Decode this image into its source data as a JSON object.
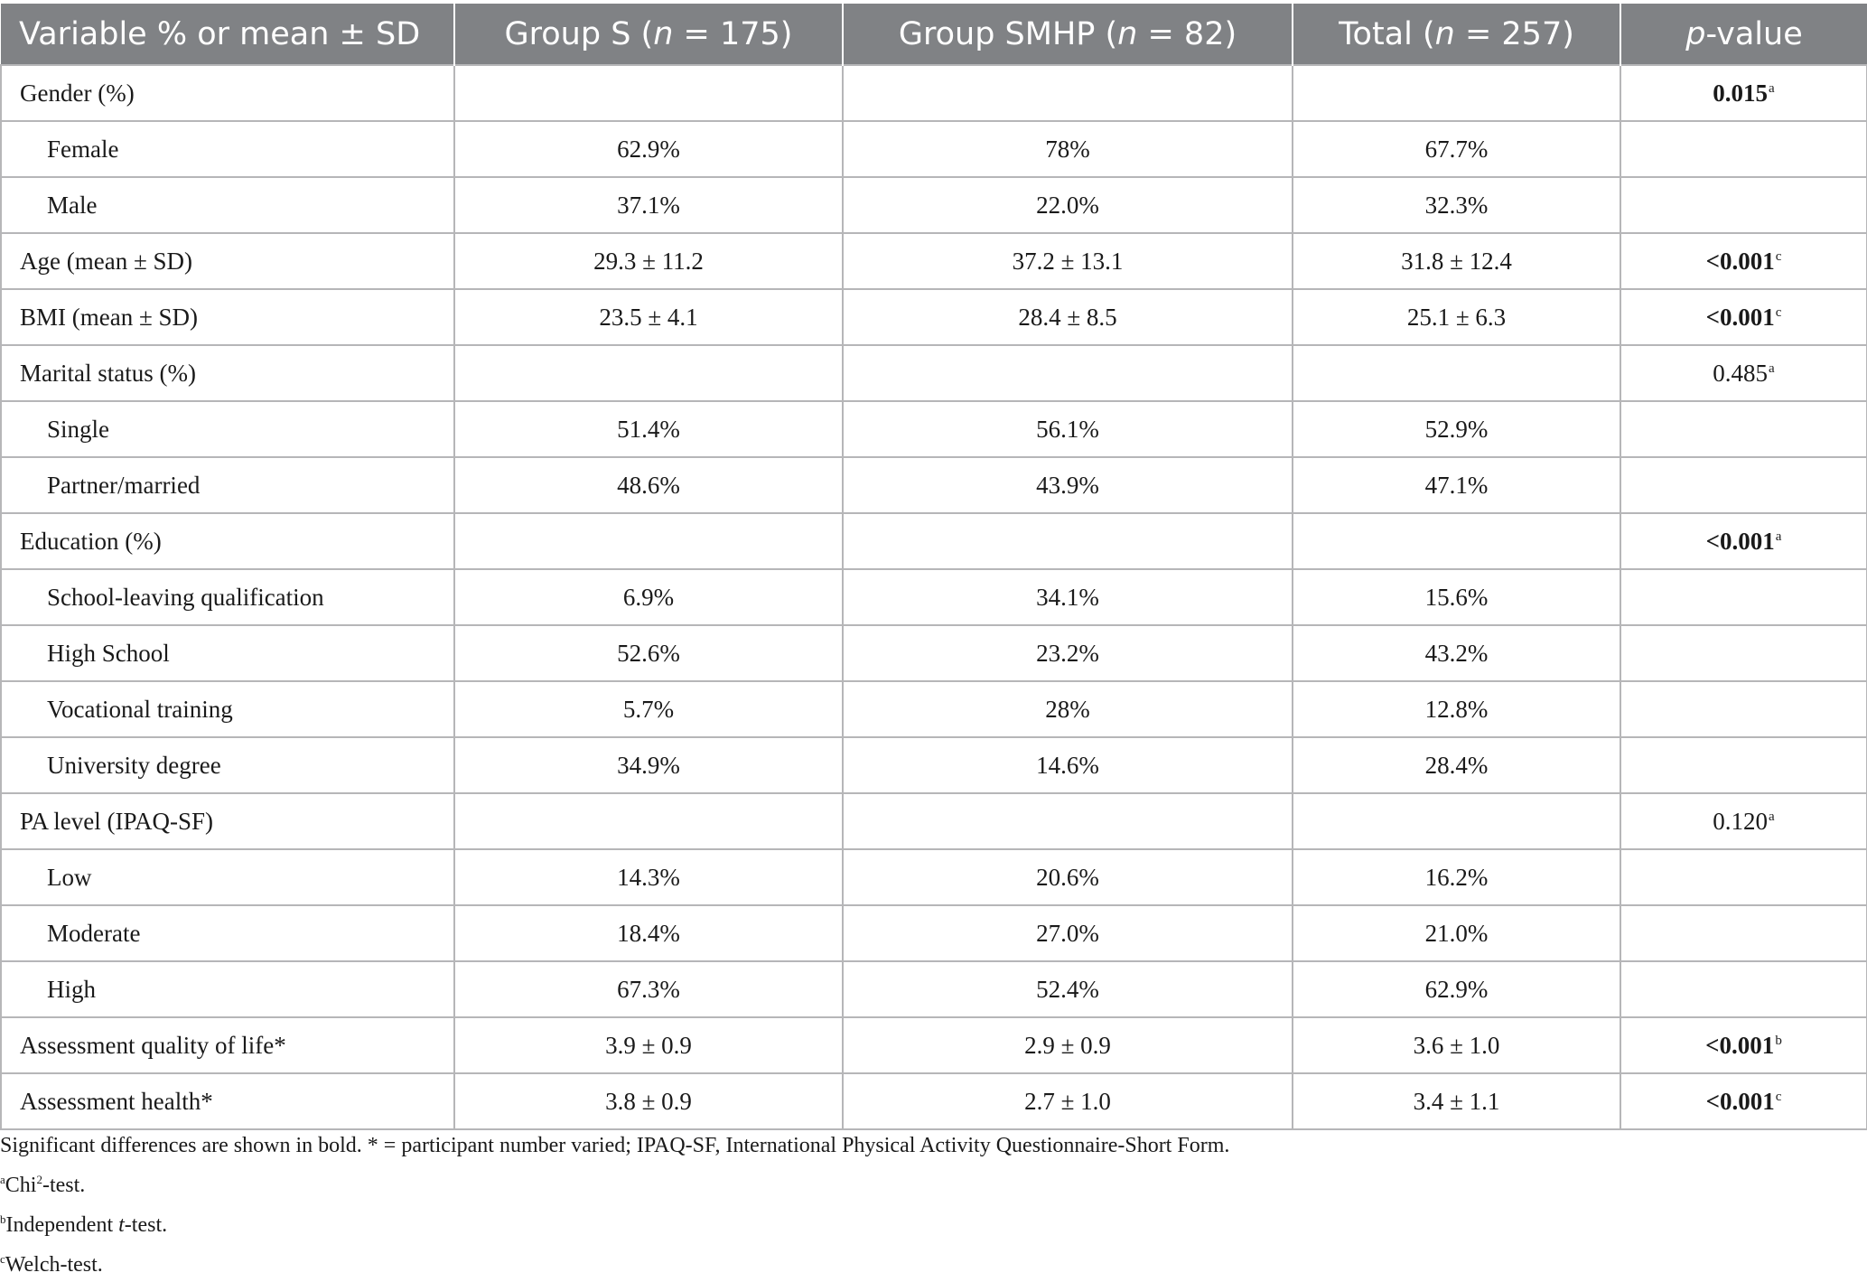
{
  "table": {
    "header": {
      "variable": "Variable % or mean ± SD",
      "group_s": {
        "prefix": "Group S (",
        "n": "n",
        "suffix": " = 175)"
      },
      "group_smhp": {
        "prefix": "Group SMHP (",
        "n": "n",
        "suffix": " = 82)"
      },
      "total": {
        "prefix": "Total (",
        "n": "n",
        "suffix": " = 257)"
      },
      "pvalue": {
        "p": "p",
        "suffix": "-value"
      }
    },
    "rows": [
      {
        "label": "Gender (%)",
        "s": "",
        "smhp": "",
        "total": "",
        "p": "0.015",
        "fn": "a",
        "bold": true,
        "sub": false
      },
      {
        "label": "Female",
        "s": "62.9%",
        "smhp": "78%",
        "total": "67.7%",
        "p": "",
        "fn": "",
        "bold": false,
        "sub": true
      },
      {
        "label": "Male",
        "s": "37.1%",
        "smhp": "22.0%",
        "total": "32.3%",
        "p": "",
        "fn": "",
        "bold": false,
        "sub": true
      },
      {
        "label": "Age (mean ± SD)",
        "s": "29.3 ± 11.2",
        "smhp": "37.2 ± 13.1",
        "total": "31.8 ± 12.4",
        "p": "<0.001",
        "fn": "c",
        "bold": true,
        "sub": false
      },
      {
        "label": "BMI (mean ± SD)",
        "s": "23.5 ± 4.1",
        "smhp": "28.4 ± 8.5",
        "total": "25.1 ± 6.3",
        "p": "<0.001",
        "fn": "c",
        "bold": true,
        "sub": false
      },
      {
        "label": "Marital status (%)",
        "s": "",
        "smhp": "",
        "total": "",
        "p": "0.485",
        "fn": "a",
        "bold": false,
        "sub": false
      },
      {
        "label": "Single",
        "s": "51.4%",
        "smhp": "56.1%",
        "total": "52.9%",
        "p": "",
        "fn": "",
        "bold": false,
        "sub": true
      },
      {
        "label": "Partner/married",
        "s": "48.6%",
        "smhp": "43.9%",
        "total": "47.1%",
        "p": "",
        "fn": "",
        "bold": false,
        "sub": true
      },
      {
        "label": "Education (%)",
        "s": "",
        "smhp": "",
        "total": "",
        "p": "<0.001",
        "fn": "a",
        "bold": true,
        "sub": false
      },
      {
        "label": "School-leaving qualification",
        "s": "6.9%",
        "smhp": "34.1%",
        "total": "15.6%",
        "p": "",
        "fn": "",
        "bold": false,
        "sub": true
      },
      {
        "label": "High School",
        "s": "52.6%",
        "smhp": "23.2%",
        "total": "43.2%",
        "p": "",
        "fn": "",
        "bold": false,
        "sub": true
      },
      {
        "label": "Vocational training",
        "s": "5.7%",
        "smhp": "28%",
        "total": "12.8%",
        "p": "",
        "fn": "",
        "bold": false,
        "sub": true
      },
      {
        "label": "University degree",
        "s": "34.9%",
        "smhp": "14.6%",
        "total": "28.4%",
        "p": "",
        "fn": "",
        "bold": false,
        "sub": true
      },
      {
        "label": "PA level (IPAQ-SF)",
        "s": "",
        "smhp": "",
        "total": "",
        "p": "0.120",
        "fn": "a",
        "bold": false,
        "sub": false
      },
      {
        "label": "Low",
        "s": "14.3%",
        "smhp": "20.6%",
        "total": "16.2%",
        "p": "",
        "fn": "",
        "bold": false,
        "sub": true
      },
      {
        "label": "Moderate",
        "s": "18.4%",
        "smhp": "27.0%",
        "total": "21.0%",
        "p": "",
        "fn": "",
        "bold": false,
        "sub": true
      },
      {
        "label": "High",
        "s": "67.3%",
        "smhp": "52.4%",
        "total": "62.9%",
        "p": "",
        "fn": "",
        "bold": false,
        "sub": true
      },
      {
        "label": "Assessment quality of life*",
        "s": "3.9 ± 0.9",
        "smhp": "2.9 ± 0.9",
        "total": "3.6 ± 1.0",
        "p": "<0.001",
        "fn": "b",
        "bold": true,
        "sub": false
      },
      {
        "label": "Assessment health*",
        "s": "3.8 ± 0.9",
        "smhp": "2.7 ± 1.0",
        "total": "3.4 ± 1.1",
        "p": "<0.001",
        "fn": "c",
        "bold": true,
        "sub": false
      }
    ]
  },
  "notes": {
    "main": "Significant differences are shown in bold. * = participant number varied; IPAQ-SF, International Physical Activity Questionnaire-Short Form.",
    "a": {
      "mark": "a",
      "pre": "Chi",
      "sup": "2",
      "post": "-test."
    },
    "b": {
      "mark": "b",
      "pre": "Independent ",
      "em": "t",
      "post": "-test."
    },
    "c": {
      "mark": "c",
      "text": "Welch-test."
    }
  }
}
